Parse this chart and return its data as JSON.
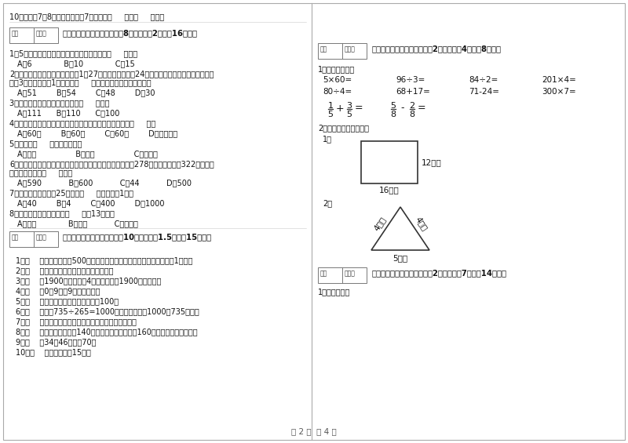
{
  "page_bg": "#ffffff",
  "border_color": "#bbbbbb",
  "divider_color": "#cccccc",
  "text_color": "#222222",
  "gray_text": "#555555",
  "left_col": {
    "item10": "10．时针在7和8之间，分针指向7，这时是（     ）时（     ）分。",
    "section2_header": "二、反复比较，慎重选择（共8小题，每题2分，共16分）。",
    "q1": "1．5名同学打乒乓球，每两人打一场，共要打（     ）场。",
    "q1_opts": "A．6             B．10             C．15",
    "q2a": "2．学校开设两个兴趣小组，三（1）27人参加书画小组，24人参加棋艺小组，两个小组都参加",
    "q2b": "的有3人，那么三（1）一共有（     ）人参加了书画和棋艺小组。",
    "q2_opts": "A．51        B．54        C．48        D．30",
    "q3": "3．最大的三位数是最大一位数的（     ）倍。",
    "q3_opts": "A．111      B．110      C．100",
    "q4": "4．时针从上一个数字到相邻的下一个数字，经过的时间是（     ）。",
    "q4_opts": "A．60秒        B．60分        C．60时        D．无法确定",
    "q5": "5．四边形（     ）平行四边形。",
    "q5_opts": "A．一定                B．可能                C．不可能",
    "q6a": "6．广州新电视塔是广州市目前最高的建筑，它比中信大厦高278米，中信大厦高322米，那么",
    "q6b": "广州新电视塔高（     ）米。",
    "q6_opts": "A．590           B．600           C．44           D．500",
    "q7": "7．平均每个同学体重25千克，（     ）名同学重1吨。",
    "q7_opts": "A．40        B．4        C．400        D．1000",
    "q8": "8．按农历计算，有的年份（     ）有13个月。",
    "q8_opts": "A．一定             B．可能           C．不可能",
    "section3_header": "三、仔细推敲，正确判断（共10小题，每题1.5分，共15分）。",
    "judge_items": [
      "1．（    ）小明家离学校500米，他每天上学、回家，一个来回一共要走1千米。",
      "2．（    ）小明面对着东方时，背对着西方。",
      "3．（    ）1900年的年份是4的倍数，所以1900年是闰年。",
      "4．（    ）0．9里有9个十分之一。",
      "5．（    ）两个面积单位之间的进率是100。",
      "6．（    ）根据735÷265=1000，可以直接写出1000－735的差。",
      "7．（    ）所有的大月都是单月，所有的小月都是双月。",
      "8．（    ）一条河平均水深140厘米，一匹小马身高是160厘米，它肯定能通过。",
      "9．（    ）34与46的和是70。",
      "10．（    ）李老师身高15米。"
    ]
  },
  "right_col": {
    "section4_header": "四、看清题目，细心计算（共2小题，每题4分，共8分）。",
    "calc1_label": "1．直接写得数。",
    "calc_row1": [
      "5×60=",
      "96÷3=",
      "84÷2=",
      "201×4="
    ],
    "calc_row2": [
      "80÷4=",
      "68+17=",
      "71-24=",
      "300×7="
    ],
    "frac_items": [
      {
        "num": "1",
        "den": "5",
        "op": "+",
        "num2": "3",
        "den2": "5",
        "eq": "="
      },
      {
        "num": "5",
        "den": "8",
        "op": "-",
        "num2": "2",
        "den2": "8",
        "eq": "="
      }
    ],
    "calc2_label": "2．求下面图形的周长。",
    "prob1_label": "1．",
    "rect_w_label": "16厘米",
    "rect_h_label": "12厘米",
    "prob2_label": "2．",
    "tri_left_label": "4分米",
    "tri_right_label": "4分米",
    "tri_bot_label": "5分米",
    "section5_header": "五、认真思考，综合能力（共2小题，每题7分，共14分）。",
    "fill_label": "1．看图填空："
  },
  "score_box_label1": "得分",
  "score_box_label2": "评卷人",
  "footer": "第 2 页  共 4 页"
}
